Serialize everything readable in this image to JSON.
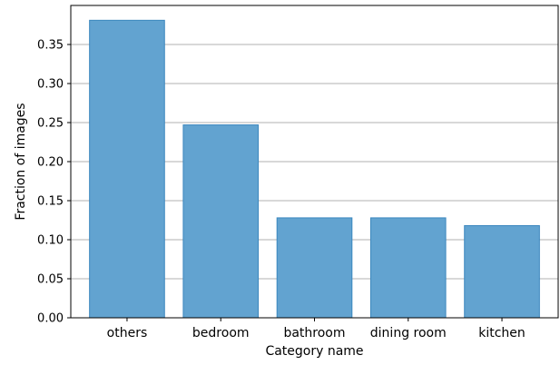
{
  "chart_data": {
    "type": "bar",
    "categories": [
      "others",
      "bedroom",
      "bathroom",
      "dining room",
      "kitchen"
    ],
    "values": [
      0.381,
      0.247,
      0.128,
      0.128,
      0.118
    ],
    "xlabel": "Category name",
    "ylabel": "Fraction of images",
    "ylim": [
      0,
      0.4
    ],
    "yticks": [
      "0.00",
      "0.05",
      "0.10",
      "0.15",
      "0.20",
      "0.25",
      "0.30",
      "0.35"
    ],
    "grid": "horizontal",
    "bar_color": "#62a3d0",
    "bar_edge_color": "#3b87be",
    "grid_color": "#b0b0b0"
  }
}
